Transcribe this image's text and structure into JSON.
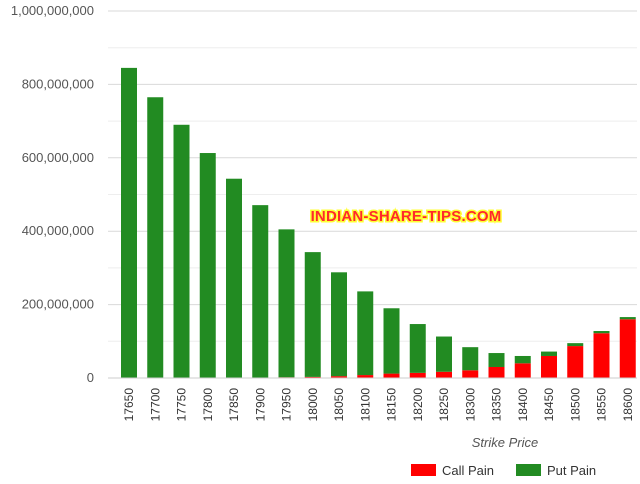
{
  "watermark": "INDIAN-SHARE-TIPS.COM",
  "chart_data": {
    "type": "bar",
    "stacked": true,
    "xlabel": "Strike Price",
    "ylabel": "",
    "ylim": [
      0,
      1000000000
    ],
    "y_ticks": [
      0,
      200000000,
      400000000,
      600000000,
      800000000,
      1000000000
    ],
    "y_tick_labels": [
      "0",
      "200,000,000",
      "400,000,000",
      "600,000,000",
      "800,000,000",
      "1,000,000,000"
    ],
    "grid": true,
    "legend_position": "bottom-right",
    "categories": [
      "17650",
      "17700",
      "17750",
      "17800",
      "17850",
      "17900",
      "17950",
      "18000",
      "18050",
      "18100",
      "18150",
      "18200",
      "18250",
      "18300",
      "18350",
      "18400",
      "18450",
      "18500",
      "18550",
      "18600"
    ],
    "series": [
      {
        "name": "Call Pain",
        "color": "#ff0000",
        "values": [
          0,
          0,
          0,
          0,
          0,
          1000000,
          2000000,
          3000000,
          5000000,
          8000000,
          12000000,
          14000000,
          17000000,
          21000000,
          30000000,
          40000000,
          60000000,
          87000000,
          122000000,
          160000000
        ]
      },
      {
        "name": "Put Pain",
        "color": "#228b22",
        "values": [
          845000000,
          765000000,
          690000000,
          613000000,
          543000000,
          470000000,
          403000000,
          340000000,
          283000000,
          228000000,
          178000000,
          133000000,
          96000000,
          63000000,
          38000000,
          20000000,
          12000000,
          8000000,
          6000000,
          6000000
        ]
      }
    ]
  }
}
